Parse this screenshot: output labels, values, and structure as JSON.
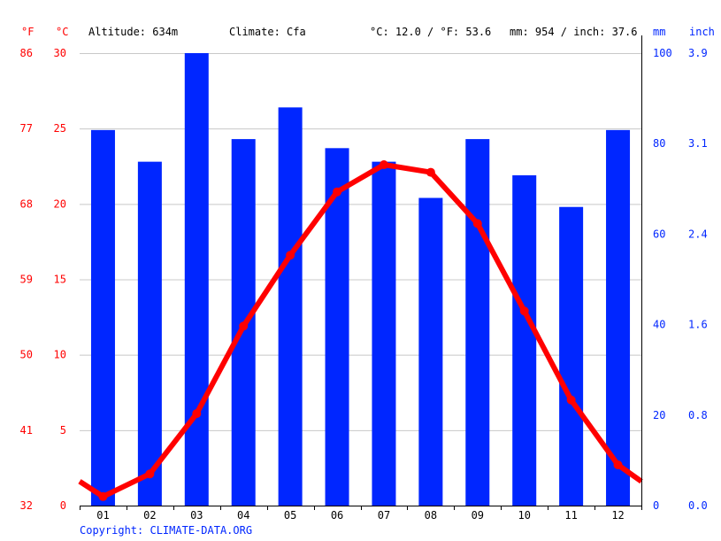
{
  "header": {
    "unit_f": "°F",
    "unit_c": "°C",
    "altitude": "Altitude: 634m",
    "climate": "Climate: Cfa",
    "temp_avg": "°C: 12.0 / °F: 53.6",
    "precip_total": "mm: 954 / inch: 37.6",
    "unit_mm": "mm",
    "unit_inch": "inch"
  },
  "copyright": "Copyright: CLIMATE-DATA.ORG",
  "colors": {
    "temperature": "#ff0000",
    "precipitation": "#0026ff",
    "grid": "#c8c8c8",
    "axis": "#000000"
  },
  "chart_data": {
    "type": "bar",
    "categories": [
      "01",
      "02",
      "03",
      "04",
      "05",
      "06",
      "07",
      "08",
      "09",
      "10",
      "11",
      "12"
    ],
    "series": [
      {
        "unit": "mm",
        "chart_type": "bar",
        "axis": "right",
        "values": [
          83,
          76,
          100,
          81,
          88,
          79,
          76,
          68,
          81,
          73,
          66,
          83
        ]
      },
      {
        "unit": "°C",
        "chart_type": "line",
        "axis": "left",
        "values": [
          0.6,
          2.1,
          6.1,
          11.9,
          16.6,
          20.8,
          22.6,
          22.1,
          18.7,
          12.9,
          7.0,
          2.7
        ]
      }
    ],
    "line_edge_values": {
      "start": 1.6,
      "end": 1.6
    },
    "y_left_c": {
      "min": 0,
      "max": 30,
      "ticks": [
        0,
        5,
        10,
        15,
        20,
        25,
        30
      ]
    },
    "y_left_f_ticks": [
      "32",
      "41",
      "50",
      "59",
      "68",
      "77",
      "86"
    ],
    "y_right_mm": {
      "min": 0,
      "max": 100,
      "ticks": [
        "0",
        "20",
        "40",
        "60",
        "80",
        "100"
      ]
    },
    "y_right_inch_ticks": [
      "0.0",
      "0.8",
      "1.6",
      "2.4",
      "3.1",
      "3.9"
    ],
    "grid": true
  }
}
